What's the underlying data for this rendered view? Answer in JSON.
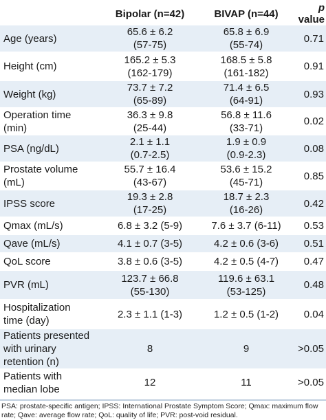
{
  "table": {
    "headers": [
      "",
      "Bipolar (n=42)",
      "BIVAP (n=44)",
      "p",
      "value"
    ],
    "rows": [
      {
        "label": [
          "Age (years)"
        ],
        "bipolar": [
          "65.6 ± 6.2",
          "(57-75)"
        ],
        "bivap": [
          "65.8 ± 6.9",
          "(55-74)"
        ],
        "p": "0.71"
      },
      {
        "label": [
          "Height (cm)"
        ],
        "bipolar": [
          "165.2 ± 5.3",
          "(162-179)"
        ],
        "bivap": [
          "168.5 ± 5.8",
          "(161-182)"
        ],
        "p": "0.91"
      },
      {
        "label": [
          "Weight (kg)"
        ],
        "bipolar": [
          "73.7 ± 7.2",
          "(65-89)"
        ],
        "bivap": [
          "71.4 ± 6.5",
          "(64-91)"
        ],
        "p": "0.93"
      },
      {
        "label": [
          "Operation time",
          "(min)"
        ],
        "bipolar": [
          "36.3 ± 9.8",
          "(25-44)"
        ],
        "bivap": [
          "56.8 ± 11.6",
          "(33-71)"
        ],
        "p": "0.02"
      },
      {
        "label": [
          "PSA (ng/dL)"
        ],
        "bipolar": [
          "2.1 ± 1.1",
          "(0.7-2.5)"
        ],
        "bivap": [
          "1.9 ± 0.9",
          "(0.9-2.3)"
        ],
        "p": "0.08"
      },
      {
        "label": [
          "Prostate volume",
          "(mL)"
        ],
        "bipolar": [
          "55.7 ± 16.4",
          "(43-67)"
        ],
        "bivap": [
          "53.6 ± 15.2",
          "(45-71)"
        ],
        "p": "0.85"
      },
      {
        "label": [
          "IPSS score"
        ],
        "bipolar": [
          "19.3 ± 2.8",
          "(17-25)"
        ],
        "bivap": [
          "18.7 ± 2.3",
          "(16-26)"
        ],
        "p": "0.42"
      },
      {
        "label": [
          "Qmax (mL/s)"
        ],
        "bipolar": [
          "6.8 ± 3.2 (5-9)"
        ],
        "bivap": [
          "7.6 ± 3.7 (6-11)"
        ],
        "p": "0.53"
      },
      {
        "label": [
          "Qave (mL/s)"
        ],
        "bipolar": [
          "4.1 ± 0.7 (3-5)"
        ],
        "bivap": [
          "4.2 ± 0.6 (3-6)"
        ],
        "p": "0.51"
      },
      {
        "label": [
          "QoL score"
        ],
        "bipolar": [
          "3.8 ± 0.6 (3-5)"
        ],
        "bivap": [
          "4.2 ± 0.5 (4-7)"
        ],
        "p": "0.47"
      },
      {
        "label": [
          "PVR (mL)"
        ],
        "bipolar": [
          "123.7 ± 66.8",
          "(55-130)"
        ],
        "bivap": [
          "119.6 ± 63.1",
          "(53-125)"
        ],
        "p": "0.48"
      },
      {
        "label": [
          "Hospitalization",
          "time (day)"
        ],
        "bipolar": [
          "2.3 ± 1.1 (1-3)"
        ],
        "bivap": [
          "1.2 ± 0.5 (1-2)"
        ],
        "p": "0.04"
      },
      {
        "label": [
          "Patients presented",
          "with urinary",
          "retention (n)"
        ],
        "bipolar": [
          "8"
        ],
        "bivap": [
          "9"
        ],
        "p": ">0.05"
      },
      {
        "label": [
          "Patients with",
          "median lobe"
        ],
        "bipolar": [
          "12"
        ],
        "bivap": [
          "11"
        ],
        "p": ">0.05"
      }
    ]
  },
  "footnote": "PSA: prostate-specific antigen; IPSS: International Prostate Symptom Score; Qmax: maximum flow rate; Qave: average flow rate; QoL: quality of life; PVR: post-void residual."
}
